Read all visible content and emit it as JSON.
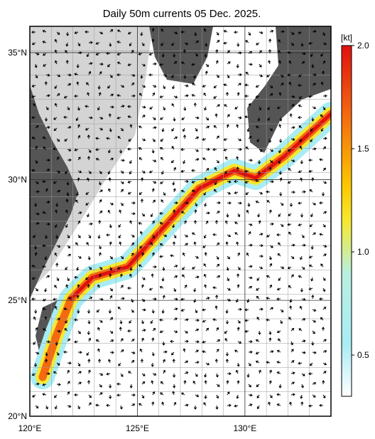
{
  "chart_data": {
    "type": "map",
    "title": "Daily 50m currents 05 Dec. 2025.",
    "xlim": [
      120,
      134
    ],
    "ylim": [
      20,
      36
    ],
    "xticks": [
      {
        "value": 120,
        "label": "120°E"
      },
      {
        "value": 125,
        "label": "125°E"
      },
      {
        "value": 130,
        "label": "130°E"
      }
    ],
    "yticks": [
      {
        "value": 20,
        "label": "20°N"
      },
      {
        "value": 25,
        "label": "25°N"
      },
      {
        "value": 30,
        "label": "30°N"
      },
      {
        "value": 35,
        "label": "35°N"
      }
    ],
    "colorbar": {
      "unit": "[kt]",
      "lim": [
        0.3,
        2.0
      ],
      "ticks": [
        0.5,
        {
          "value": 1,
          "label": "1.0"
        },
        1.5,
        {
          "value": 2,
          "label": "2.0"
        }
      ]
    }
  }
}
